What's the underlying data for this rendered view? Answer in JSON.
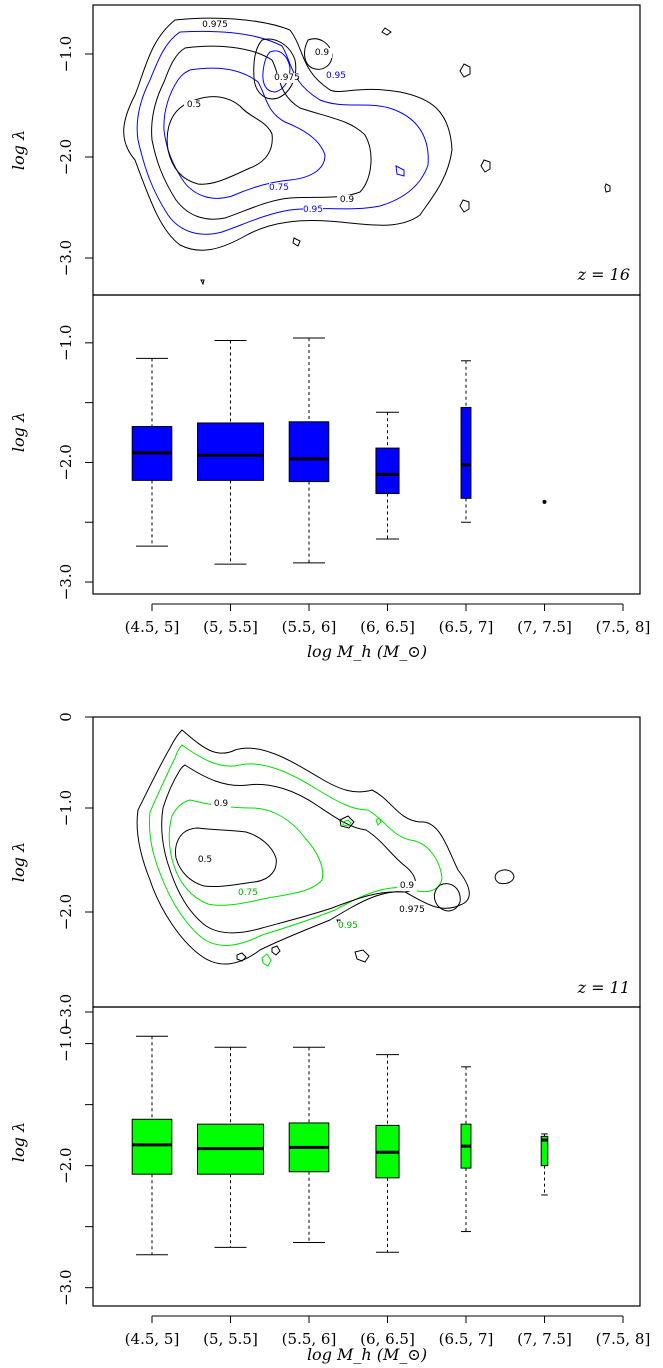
{
  "chart_data": [
    {
      "type": "contour",
      "panel": "top-contour",
      "annotation": "z = 16",
      "ylabel": "log λ",
      "yticks": [
        "−1.0",
        "−2.0",
        "−3.0"
      ],
      "ylim": [
        -3.4,
        -0.6
      ],
      "series_color": "#0000ff",
      "contour_levels": [
        "0.5",
        "0.75",
        "0.9",
        "0.95",
        "0.975"
      ]
    },
    {
      "type": "box",
      "panel": "top-box",
      "ylabel": "log λ",
      "xlabel": "log M_h (M_⊙)",
      "yticks": [
        "−1.0",
        "−2.0",
        "−3.0"
      ],
      "ylim": [
        -3.1,
        -0.6
      ],
      "color": "#0000ff",
      "categories": [
        "(4.5, 5]",
        "(5, 5.5]",
        "(5.5, 6]",
        "(6, 6.5]",
        "(6.5, 7]",
        "(7, 7.5]",
        "(7.5, 8]"
      ],
      "boxes": [
        {
          "q1": -2.15,
          "median": -1.92,
          "q3": -1.7,
          "lo": -2.7,
          "hi": -1.13
        },
        {
          "q1": -2.15,
          "median": -1.94,
          "q3": -1.67,
          "lo": -2.85,
          "hi": -0.98
        },
        {
          "q1": -2.16,
          "median": -1.97,
          "q3": -1.66,
          "lo": -2.84,
          "hi": -0.96
        },
        {
          "q1": -2.26,
          "median": -2.1,
          "q3": -1.88,
          "lo": -2.64,
          "hi": -1.58
        },
        {
          "q1": -2.3,
          "median": -2.02,
          "q3": -1.54,
          "lo": -2.5,
          "hi": -1.15
        },
        {
          "point": -2.33
        },
        null
      ]
    },
    {
      "type": "contour",
      "panel": "bottom-contour",
      "annotation": "z = 11",
      "ylabel": "log λ",
      "yticks": [
        "0",
        "−1.0",
        "−2.0",
        "−3.0"
      ],
      "ylim": [
        -3.2,
        0.1
      ],
      "series_color": "#00e000",
      "contour_levels": [
        "0.5",
        "0.75",
        "0.9",
        "0.95",
        "0.975"
      ]
    },
    {
      "type": "box",
      "panel": "bottom-box",
      "ylabel": "log λ",
      "xlabel": "log M_h (M_⊙)",
      "yticks": [
        "−1.0",
        "−2.0",
        "−3.0"
      ],
      "ylim": [
        -3.15,
        -0.7
      ],
      "color": "#00ff00",
      "categories": [
        "(4.5, 5]",
        "(5, 5.5]",
        "(5.5, 6]",
        "(6, 6.5]",
        "(6.5, 7]",
        "(7, 7.5]",
        "(7.5, 8]"
      ],
      "boxes": [
        {
          "q1": -2.07,
          "median": -1.83,
          "q3": -1.62,
          "lo": -2.73,
          "hi": -0.94
        },
        {
          "q1": -2.07,
          "median": -1.86,
          "q3": -1.66,
          "lo": -2.67,
          "hi": -1.03
        },
        {
          "q1": -2.05,
          "median": -1.85,
          "q3": -1.65,
          "lo": -2.63,
          "hi": -1.03
        },
        {
          "q1": -2.1,
          "median": -1.89,
          "q3": -1.67,
          "lo": -2.71,
          "hi": -1.09
        },
        {
          "q1": -2.02,
          "median": -1.84,
          "q3": -1.66,
          "lo": -2.54,
          "hi": -1.19
        },
        {
          "q1": -2.0,
          "median": -1.79,
          "q3": -1.76,
          "lo": -2.24,
          "hi": -1.74
        },
        null
      ]
    }
  ]
}
